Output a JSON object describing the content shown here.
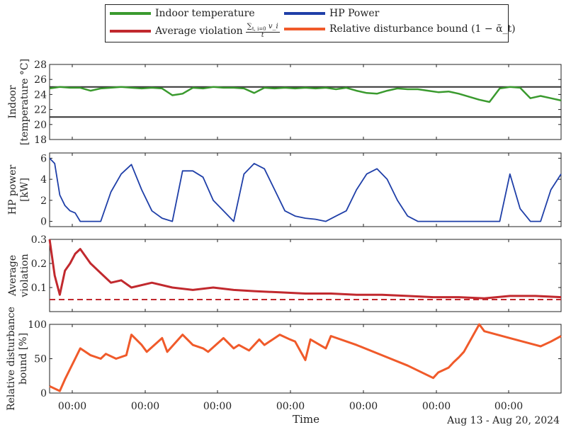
{
  "legend": {
    "items": [
      {
        "label": "Indoor temperature",
        "color": "#3a9a2e"
      },
      {
        "label": "HP Power",
        "color": "#1f3fa8"
      },
      {
        "label": "Average violation",
        "color": "#c1292e"
      },
      {
        "label": "Relative disturbance bound (1 − ᾱ_t)",
        "color": "#f05a2a"
      }
    ],
    "avg_violation_fraction": {
      "numerator_sum": "∑",
      "numerator_limits": "t, i=0",
      "numerator_term": "v_i",
      "denominator": "t"
    }
  },
  "x_axis": {
    "xlabel": "Time",
    "date_range": "Aug 13 - Aug 20, 2024",
    "tick_labels": [
      "00:00",
      "00:00",
      "00:00",
      "00:00",
      "00:00",
      "00:00",
      "00:00"
    ]
  },
  "chart_data": [
    {
      "type": "line",
      "ylabel": "Indoor [temperature °C]",
      "ylim": [
        18,
        28
      ],
      "yticks": [
        "18",
        "20",
        "22",
        "24",
        "26",
        "28"
      ],
      "hlines": [
        21,
        25
      ],
      "x": [
        0,
        0.02,
        0.04,
        0.06,
        0.08,
        0.1,
        0.12,
        0.14,
        0.16,
        0.18,
        0.2,
        0.22,
        0.24,
        0.26,
        0.28,
        0.3,
        0.32,
        0.34,
        0.36,
        0.38,
        0.4,
        0.42,
        0.44,
        0.46,
        0.48,
        0.5,
        0.52,
        0.54,
        0.56,
        0.58,
        0.6,
        0.62,
        0.64,
        0.66,
        0.68,
        0.7,
        0.72,
        0.74,
        0.76,
        0.78,
        0.8,
        0.82,
        0.84,
        0.86,
        0.88,
        0.9,
        0.92,
        0.94,
        0.96,
        0.98,
        1.0
      ],
      "series": [
        {
          "name": "Indoor temperature",
          "values": [
            24.8,
            25.0,
            24.9,
            24.9,
            24.5,
            24.8,
            24.9,
            25.0,
            24.9,
            24.8,
            24.9,
            24.8,
            23.9,
            24.1,
            24.9,
            24.8,
            25.0,
            24.9,
            24.9,
            24.8,
            24.2,
            24.9,
            24.8,
            24.9,
            24.8,
            24.9,
            24.8,
            24.9,
            24.7,
            24.9,
            24.5,
            24.2,
            24.1,
            24.5,
            24.8,
            24.7,
            24.7,
            24.5,
            24.3,
            24.4,
            24.1,
            23.7,
            23.3,
            23.0,
            24.8,
            25.0,
            24.9,
            23.5,
            23.8,
            23.5,
            23.2
          ]
        }
      ]
    },
    {
      "type": "line",
      "ylabel": "HP power [kW]",
      "ylim": [
        -0.5,
        6.5
      ],
      "yticks": [
        "0",
        "2",
        "4",
        "6"
      ],
      "x": [
        0,
        0.01,
        0.02,
        0.03,
        0.04,
        0.05,
        0.06,
        0.08,
        0.1,
        0.12,
        0.14,
        0.16,
        0.18,
        0.2,
        0.22,
        0.24,
        0.26,
        0.28,
        0.3,
        0.32,
        0.34,
        0.36,
        0.38,
        0.4,
        0.42,
        0.44,
        0.46,
        0.48,
        0.5,
        0.52,
        0.54,
        0.56,
        0.58,
        0.6,
        0.62,
        0.64,
        0.66,
        0.68,
        0.7,
        0.72,
        0.74,
        0.76,
        0.78,
        0.8,
        0.82,
        0.84,
        0.86,
        0.88,
        0.9,
        0.92,
        0.94,
        0.96,
        0.98,
        1.0
      ],
      "series": [
        {
          "name": "HP Power",
          "values": [
            6.0,
            5.5,
            2.5,
            1.5,
            1.0,
            0.8,
            0.0,
            0.0,
            0.0,
            2.8,
            4.5,
            5.4,
            3.0,
            1.0,
            0.3,
            0.0,
            4.8,
            4.8,
            4.2,
            2.0,
            1.0,
            0.0,
            4.5,
            5.5,
            5.0,
            3.0,
            1.0,
            0.5,
            0.3,
            0.2,
            0.0,
            0.5,
            1.0,
            3.0,
            4.5,
            5.0,
            4.0,
            2.0,
            0.5,
            0.0,
            0.0,
            0.0,
            0.0,
            0.0,
            0.0,
            0.0,
            0.0,
            0.0,
            4.5,
            1.2,
            0.0,
            0.0,
            3.0,
            4.5
          ]
        }
      ]
    },
    {
      "type": "line",
      "ylabel": "Average violation",
      "ylim": [
        0,
        0.3
      ],
      "yticks": [
        "0.1",
        "0.2",
        "0.3"
      ],
      "hlines": [
        0.05
      ],
      "x": [
        0,
        0.01,
        0.02,
        0.03,
        0.04,
        0.05,
        0.06,
        0.08,
        0.1,
        0.12,
        0.14,
        0.16,
        0.2,
        0.24,
        0.28,
        0.32,
        0.36,
        0.4,
        0.45,
        0.5,
        0.55,
        0.6,
        0.65,
        0.7,
        0.75,
        0.8,
        0.85,
        0.9,
        0.95,
        1.0
      ],
      "series": [
        {
          "name": "Average violation",
          "values": [
            0.3,
            0.15,
            0.07,
            0.17,
            0.2,
            0.24,
            0.26,
            0.2,
            0.16,
            0.12,
            0.13,
            0.1,
            0.12,
            0.1,
            0.09,
            0.1,
            0.09,
            0.085,
            0.08,
            0.075,
            0.075,
            0.07,
            0.07,
            0.065,
            0.06,
            0.06,
            0.055,
            0.065,
            0.065,
            0.06
          ]
        }
      ]
    },
    {
      "type": "line",
      "ylabel": "Relative disturbance bound [%]",
      "ylim": [
        0,
        100
      ],
      "yticks": [
        "0",
        "50",
        "100"
      ],
      "x": [
        0,
        0.02,
        0.03,
        0.04,
        0.05,
        0.06,
        0.08,
        0.1,
        0.11,
        0.13,
        0.15,
        0.16,
        0.18,
        0.19,
        0.22,
        0.23,
        0.26,
        0.28,
        0.3,
        0.31,
        0.34,
        0.36,
        0.37,
        0.39,
        0.41,
        0.42,
        0.45,
        0.47,
        0.48,
        0.5,
        0.51,
        0.54,
        0.55,
        0.6,
        0.65,
        0.7,
        0.75,
        0.76,
        0.78,
        0.79,
        0.8,
        0.81,
        0.84,
        0.85,
        0.9,
        0.95,
        0.96,
        0.98,
        1.0
      ],
      "series": [
        {
          "name": "Relative disturbance bound",
          "values": [
            10,
            3,
            20,
            35,
            50,
            65,
            55,
            50,
            57,
            50,
            55,
            85,
            70,
            60,
            80,
            60,
            85,
            70,
            65,
            60,
            80,
            65,
            70,
            62,
            78,
            70,
            85,
            78,
            75,
            48,
            78,
            65,
            83,
            70,
            55,
            40,
            22,
            30,
            37,
            45,
            52,
            60,
            100,
            90,
            80,
            70,
            68,
            75,
            83
          ]
        }
      ]
    }
  ]
}
